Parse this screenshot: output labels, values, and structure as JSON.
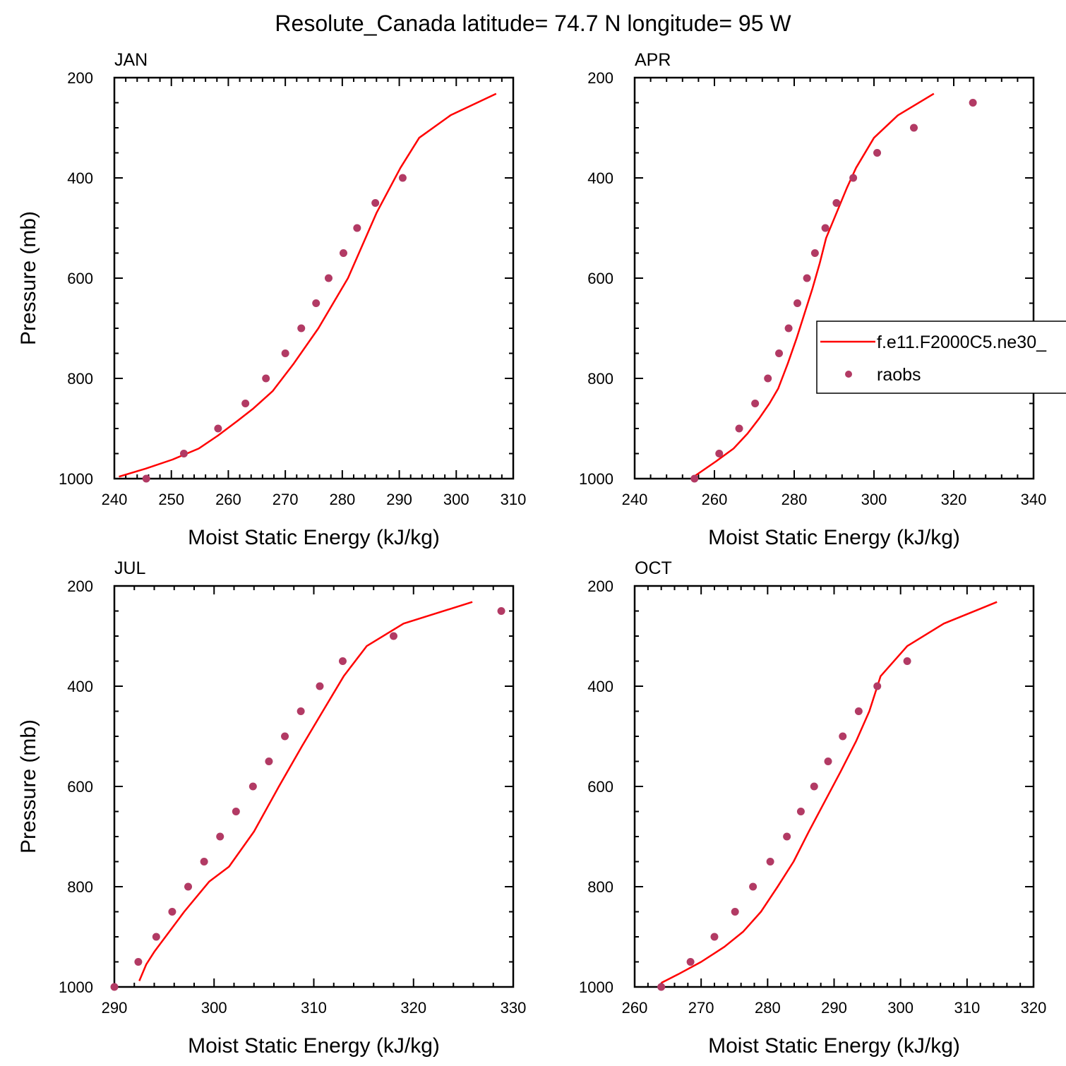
{
  "figure_title": "Resolute_Canada  latitude= 74.7 N longitude= 95 W",
  "legend": {
    "line_label": "f.e11.F2000C5.ne30_",
    "dots_label": "raobs"
  },
  "colors": {
    "line": "#ff0000",
    "dots": "#b23a64",
    "frame": "#000000"
  },
  "chart_data": [
    {
      "type": "line+scatter",
      "title": "JAN",
      "xlabel": "Moist Static Energy (kJ/kg)",
      "ylabel": "Pressure (mb)",
      "xlim": [
        240,
        310
      ],
      "ylim": [
        1000,
        200
      ],
      "y_inverted": true,
      "xticks": [
        240,
        250,
        260,
        270,
        280,
        290,
        300,
        310
      ],
      "yticks": [
        200,
        400,
        600,
        800,
        1000
      ],
      "series": [
        {
          "name": "f.e11.F2000C5.ne30_",
          "kind": "line",
          "x": [
            240.8,
            245.5,
            250.2,
            254.8,
            258.2,
            261.6,
            264.4,
            267.8,
            271.5,
            275.8,
            281.0,
            286.0,
            290.2,
            293.5,
            299.0,
            307.0
          ],
          "y": [
            996,
            980,
            962,
            940,
            914,
            885,
            860,
            825,
            770,
            700,
            600,
            470,
            380,
            320,
            275,
            232
          ]
        },
        {
          "name": "raobs",
          "kind": "scatter",
          "x": [
            245.6,
            252.2,
            258.2,
            263.0,
            266.6,
            270.0,
            272.8,
            275.4,
            277.6,
            280.2,
            282.6,
            285.8,
            290.6
          ],
          "y": [
            1000,
            950,
            900,
            850,
            800,
            750,
            700,
            650,
            600,
            550,
            500,
            450,
            400
          ]
        }
      ]
    },
    {
      "type": "line+scatter",
      "title": "APR",
      "xlabel": "Moist Static Energy (kJ/kg)",
      "ylabel": "",
      "xlim": [
        240,
        340
      ],
      "ylim": [
        1000,
        200
      ],
      "y_inverted": true,
      "xticks": [
        240,
        260,
        280,
        300,
        320,
        340
      ],
      "yticks": [
        200,
        400,
        600,
        800,
        1000
      ],
      "series": [
        {
          "name": "f.e11.F2000C5.ne30_",
          "kind": "line",
          "x": [
            255.0,
            260.5,
            264.8,
            268.3,
            271.2,
            273.8,
            276.0,
            278.4,
            280.6,
            282.6,
            284.6,
            286.4,
            288.0,
            290.6,
            293.2,
            295.5,
            300.0,
            306.0,
            315.0
          ],
          "y": [
            995,
            965,
            940,
            910,
            880,
            850,
            820,
            770,
            720,
            670,
            620,
            570,
            520,
            470,
            420,
            380,
            320,
            275,
            232
          ]
        },
        {
          "name": "raobs",
          "kind": "scatter",
          "x": [
            255.0,
            261.2,
            266.2,
            270.2,
            273.4,
            276.2,
            278.6,
            280.8,
            283.2,
            285.2,
            287.8,
            290.6,
            294.8,
            300.8,
            310.0,
            324.8
          ],
          "y": [
            1000,
            950,
            900,
            850,
            800,
            750,
            700,
            650,
            600,
            550,
            500,
            450,
            400,
            350,
            300,
            250
          ]
        }
      ]
    },
    {
      "type": "line+scatter",
      "title": "JUL",
      "xlabel": "Moist Static Energy (kJ/kg)",
      "ylabel": "Pressure (mb)",
      "xlim": [
        290,
        330
      ],
      "ylim": [
        1000,
        200
      ],
      "y_inverted": true,
      "xticks": [
        290,
        300,
        310,
        320,
        330
      ],
      "yticks": [
        200,
        400,
        600,
        800,
        1000
      ],
      "series": [
        {
          "name": "f.e11.F2000C5.ne30_",
          "kind": "line",
          "x": [
            292.5,
            293.2,
            294.0,
            297.0,
            299.5,
            301.5,
            304.0,
            306.5,
            308.8,
            310.9,
            313.0,
            315.3,
            319.0,
            325.9
          ],
          "y": [
            988,
            955,
            930,
            850,
            790,
            760,
            690,
            600,
            520,
            450,
            380,
            320,
            275,
            232
          ]
        },
        {
          "name": "raobs",
          "kind": "scatter",
          "x": [
            290.0,
            292.4,
            294.2,
            295.8,
            297.4,
            299.0,
            300.6,
            302.2,
            303.9,
            305.5,
            307.1,
            308.7,
            310.6,
            312.9,
            318.0,
            328.8
          ],
          "y": [
            1000,
            950,
            900,
            850,
            800,
            750,
            700,
            650,
            600,
            550,
            500,
            450,
            400,
            350,
            300,
            250
          ]
        }
      ]
    },
    {
      "type": "line+scatter",
      "title": "OCT",
      "xlabel": "Moist Static Energy (kJ/kg)",
      "ylabel": "",
      "xlim": [
        260,
        320
      ],
      "ylim": [
        1000,
        200
      ],
      "y_inverted": true,
      "xticks": [
        260,
        270,
        280,
        290,
        300,
        310,
        320
      ],
      "yticks": [
        200,
        400,
        600,
        800,
        1000
      ],
      "series": [
        {
          "name": "f.e11.F2000C5.ne30_",
          "kind": "line",
          "x": [
            264.0,
            266.5,
            270.0,
            273.5,
            276.3,
            279.0,
            281.5,
            283.9,
            286.2,
            288.6,
            291.0,
            293.3,
            295.3,
            297.0,
            301.0,
            306.5,
            314.5
          ],
          "y": [
            992,
            975,
            950,
            920,
            890,
            850,
            800,
            750,
            690,
            630,
            570,
            510,
            450,
            380,
            320,
            275,
            232
          ]
        },
        {
          "name": "raobs",
          "kind": "scatter",
          "x": [
            264.0,
            268.4,
            272.0,
            275.1,
            277.8,
            280.4,
            282.9,
            285.0,
            287.0,
            289.1,
            291.3,
            293.7,
            296.5,
            301.0
          ],
          "y": [
            1000,
            950,
            900,
            850,
            800,
            750,
            700,
            650,
            600,
            550,
            500,
            450,
            400,
            350
          ]
        }
      ]
    }
  ]
}
